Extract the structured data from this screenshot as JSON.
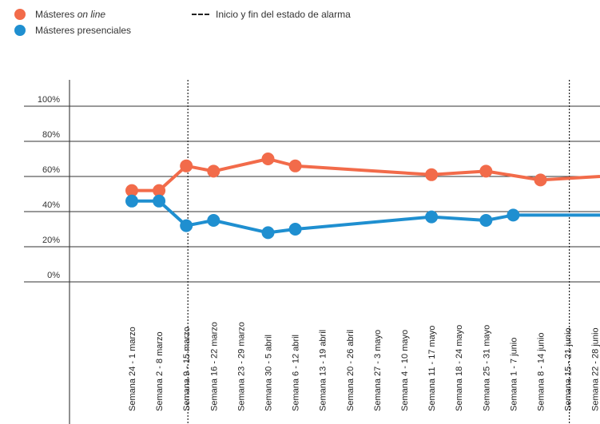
{
  "legend": {
    "series_a": "Másteres ",
    "series_a_em": "on line",
    "series_b": "Másteres presenciales",
    "alarm_line": "Inicio y fin del estado de alarma"
  },
  "chart_data": {
    "type": "line",
    "title": "",
    "xlabel": "",
    "ylabel": "",
    "ylim": [
      0,
      100
    ],
    "yticks": [
      "0%",
      "20%",
      "40%",
      "60%",
      "80%",
      "100%"
    ],
    "categories": [
      "Semana 24 - 1 marzo",
      "Semana 2 - 8 marzo",
      "Semana 9 - 15 marzo",
      "Semana 16 - 22 marzo",
      "Semana 23 - 29 marzo",
      "Semana 30 - 5 abril",
      "Semana 6 - 12 abril",
      "Semana 13 - 19 abril",
      "Semana 20 - 26 abril",
      "Semana 27 - 3 mayo",
      "Semana 4 - 10  mayo",
      "Semana 11 - 17 mayo",
      "Semana 18 - 24 mayo",
      "Semana 25 - 31 mayo",
      "Semana 1 - 7 junio",
      "Semana 8 - 14 junio",
      "Semana 15 - 21 junio",
      "Semana 22 - 28 junio"
    ],
    "series": [
      {
        "name": "Másteres on line",
        "color": "#f26b4a",
        "points": [
          {
            "i": 0,
            "v": 52
          },
          {
            "i": 1,
            "v": 52
          },
          {
            "i": 2,
            "v": 66
          },
          {
            "i": 3,
            "v": 63
          },
          {
            "i": 5,
            "v": 70
          },
          {
            "i": 6,
            "v": 66
          },
          {
            "i": 11,
            "v": 61
          },
          {
            "i": 13,
            "v": 63
          },
          {
            "i": 15,
            "v": 58
          },
          {
            "i": 17,
            "v": 60,
            "marker": false
          }
        ]
      },
      {
        "name": "Másteres presenciales",
        "color": "#1f8fd0",
        "points": [
          {
            "i": 0,
            "v": 46
          },
          {
            "i": 1,
            "v": 46
          },
          {
            "i": 2,
            "v": 32
          },
          {
            "i": 3,
            "v": 35
          },
          {
            "i": 5,
            "v": 28
          },
          {
            "i": 6,
            "v": 30
          },
          {
            "i": 11,
            "v": 37
          },
          {
            "i": 13,
            "v": 35
          },
          {
            "i": 14,
            "v": 38
          },
          {
            "i": 17,
            "v": 38,
            "marker": false
          }
        ]
      }
    ],
    "alarm_markers": [
      2,
      16
    ],
    "grid": true,
    "legend_position": "top-left"
  }
}
